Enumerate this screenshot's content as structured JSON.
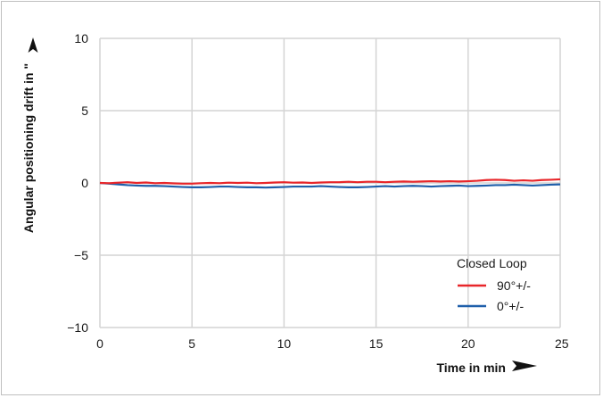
{
  "chart_data": {
    "type": "line",
    "title": "",
    "xlabel": "Time in min",
    "ylabel": "Angular positioning drift in \"",
    "xlim": [
      0,
      25
    ],
    "ylim": [
      -10,
      10
    ],
    "xticks": [
      0,
      5,
      10,
      15,
      20,
      25
    ],
    "yticks": [
      10,
      5,
      0,
      -5,
      -10
    ],
    "ytick_labels": [
      "10",
      "5",
      "0",
      "−5",
      "−10"
    ],
    "grid": true,
    "legend": {
      "title": "Closed Loop",
      "placement": "bottom-right"
    },
    "series": [
      {
        "name": "90°+/-",
        "color": "#e8262a",
        "x": [
          0,
          0.5,
          1,
          1.5,
          2,
          2.5,
          3,
          3.5,
          4,
          4.5,
          5,
          5.5,
          6,
          6.5,
          7,
          7.5,
          8,
          8.5,
          9,
          9.5,
          10,
          10.5,
          11,
          11.5,
          12,
          12.5,
          13,
          13.5,
          14,
          14.5,
          15,
          15.5,
          16,
          16.5,
          17,
          17.5,
          18,
          18.5,
          19,
          19.5,
          20,
          20.5,
          21,
          21.5,
          22,
          22.5,
          23,
          23.5,
          24,
          24.5,
          25
        ],
        "values": [
          0,
          -0.02,
          0.02,
          0.05,
          0.0,
          0.03,
          -0.02,
          0.0,
          -0.03,
          -0.05,
          -0.05,
          -0.02,
          0.0,
          -0.02,
          0.02,
          0.0,
          0.02,
          -0.02,
          0.0,
          0.03,
          0.05,
          0.02,
          0.03,
          0.0,
          0.03,
          0.05,
          0.05,
          0.08,
          0.05,
          0.08,
          0.08,
          0.05,
          0.08,
          0.1,
          0.08,
          0.1,
          0.12,
          0.1,
          0.12,
          0.1,
          0.12,
          0.15,
          0.2,
          0.22,
          0.2,
          0.15,
          0.18,
          0.15,
          0.2,
          0.22,
          0.25
        ]
      },
      {
        "name": "0°+/-",
        "color": "#1f5faa",
        "x": [
          0,
          0.5,
          1,
          1.5,
          2,
          2.5,
          3,
          3.5,
          4,
          4.5,
          5,
          5.5,
          6,
          6.5,
          7,
          7.5,
          8,
          8.5,
          9,
          9.5,
          10,
          10.5,
          11,
          11.5,
          12,
          12.5,
          13,
          13.5,
          14,
          14.5,
          15,
          15.5,
          16,
          16.5,
          17,
          17.5,
          18,
          18.5,
          19,
          19.5,
          20,
          20.5,
          21,
          21.5,
          22,
          22.5,
          23,
          23.5,
          24,
          24.5,
          25
        ],
        "values": [
          0,
          -0.05,
          -0.1,
          -0.15,
          -0.18,
          -0.2,
          -0.2,
          -0.22,
          -0.25,
          -0.28,
          -0.3,
          -0.3,
          -0.28,
          -0.25,
          -0.25,
          -0.28,
          -0.3,
          -0.3,
          -0.32,
          -0.3,
          -0.28,
          -0.25,
          -0.25,
          -0.25,
          -0.22,
          -0.25,
          -0.28,
          -0.3,
          -0.3,
          -0.28,
          -0.25,
          -0.22,
          -0.25,
          -0.22,
          -0.2,
          -0.22,
          -0.25,
          -0.22,
          -0.2,
          -0.18,
          -0.22,
          -0.2,
          -0.18,
          -0.15,
          -0.15,
          -0.12,
          -0.15,
          -0.18,
          -0.15,
          -0.12,
          -0.1
        ]
      }
    ]
  }
}
